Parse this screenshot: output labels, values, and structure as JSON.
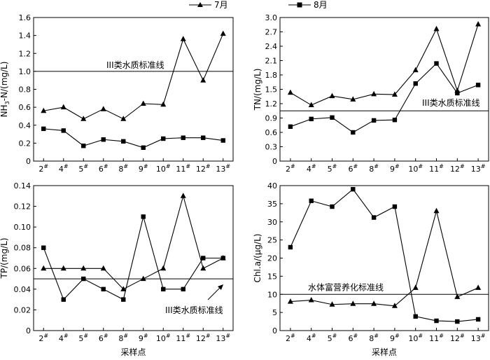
{
  "legend": {
    "jul_label": "7月",
    "aug_label": "8月"
  },
  "chart_data": [
    {
      "type": "line",
      "ylabel": "NH3-N/(mg/L)",
      "xlabel": "",
      "ylim": [
        0,
        1.6
      ],
      "yticks": [
        0,
        0.2,
        0.4,
        0.6,
        0.8,
        1.0,
        1.2,
        1.4,
        1.6
      ],
      "ytick_labels": [
        "0",
        "0.2",
        "0.4",
        "0.6",
        "0.8",
        "1.0",
        "1.2",
        "1.4",
        "1.6"
      ],
      "categories": [
        "2#",
        "4#",
        "5#",
        "6#",
        "8#",
        "9#",
        "10#",
        "11#",
        "12#",
        "13#"
      ],
      "series": [
        {
          "name": "7月",
          "marker": "triangle",
          "values": [
            0.56,
            0.6,
            0.47,
            0.58,
            0.47,
            0.64,
            0.63,
            1.36,
            0.9,
            1.42
          ]
        },
        {
          "name": "8月",
          "marker": "square",
          "values": [
            0.36,
            0.34,
            0.17,
            0.24,
            0.22,
            0.15,
            0.25,
            0.26,
            0.26,
            0.23
          ]
        }
      ],
      "reference_line": {
        "value": 1.0,
        "label": "III类水质标准线"
      }
    },
    {
      "type": "line",
      "ylabel": "TN/(mg/L)",
      "xlabel": "",
      "ylim": [
        0,
        3.0
      ],
      "yticks": [
        0,
        0.3,
        0.6,
        0.9,
        1.2,
        1.5,
        1.8,
        2.1,
        2.4,
        2.7,
        3.0
      ],
      "ytick_labels": [
        "0",
        "0.3",
        "0.6",
        "0.9",
        "1.2",
        "1.5",
        "1.8",
        "2.1",
        "2.4",
        "2.7",
        "3.0"
      ],
      "categories": [
        "2#",
        "4#",
        "5#",
        "6#",
        "8#",
        "9#",
        "10#",
        "11#",
        "12#",
        "13#"
      ],
      "series": [
        {
          "name": "7月",
          "marker": "triangle",
          "values": [
            1.43,
            1.17,
            1.36,
            1.29,
            1.4,
            1.39,
            1.9,
            2.76,
            1.47,
            2.86
          ]
        },
        {
          "name": "8月",
          "marker": "square",
          "values": [
            0.72,
            0.88,
            0.91,
            0.6,
            0.85,
            0.86,
            1.62,
            2.04,
            1.42,
            1.59
          ]
        }
      ],
      "reference_line": {
        "value": 1.05,
        "label": "III类水质标准线"
      }
    },
    {
      "type": "line",
      "ylabel": "TP/(mg/L)",
      "xlabel": "采样点",
      "ylim": [
        0,
        0.14
      ],
      "yticks": [
        0,
        0.02,
        0.04,
        0.06,
        0.08,
        0.1,
        0.12,
        0.14
      ],
      "ytick_labels": [
        "0",
        "0.02",
        "0.04",
        "0.06",
        "0.08",
        "0.10",
        "0.12",
        "0.14"
      ],
      "categories": [
        "2#",
        "4#",
        "5#",
        "6#",
        "8#",
        "9#",
        "10#",
        "11#",
        "12#",
        "13#"
      ],
      "series": [
        {
          "name": "7月",
          "marker": "triangle",
          "values": [
            0.06,
            0.06,
            0.06,
            0.06,
            0.04,
            0.05,
            0.06,
            0.13,
            0.06,
            0.07
          ]
        },
        {
          "name": "8月",
          "marker": "square",
          "values": [
            0.08,
            0.03,
            0.05,
            0.04,
            0.03,
            0.11,
            0.04,
            0.04,
            0.07,
            0.07
          ]
        }
      ],
      "reference_line": {
        "value": 0.05,
        "label": "III类水质标准线"
      }
    },
    {
      "type": "line",
      "ylabel": "Chl.a/(μg/L)",
      "xlabel": "采样点",
      "ylim": [
        0,
        40
      ],
      "yticks": [
        0,
        5,
        10,
        15,
        20,
        25,
        30,
        35,
        40
      ],
      "ytick_labels": [
        "0",
        "5",
        "10",
        "15",
        "20",
        "25",
        "30",
        "35",
        "40"
      ],
      "categories": [
        "2#",
        "4#",
        "5#",
        "6#",
        "8#",
        "9#",
        "10#",
        "11#",
        "12#",
        "13#"
      ],
      "series": [
        {
          "name": "7月",
          "marker": "triangle",
          "values": [
            8.0,
            8.4,
            7.2,
            7.4,
            7.4,
            6.8,
            11.8,
            33.0,
            9.3,
            11.8
          ]
        },
        {
          "name": "8月",
          "marker": "square",
          "values": [
            23.0,
            35.8,
            34.2,
            39.0,
            31.2,
            34.2,
            3.9,
            2.7,
            2.5,
            3.1
          ]
        }
      ],
      "reference_line": {
        "value": 10,
        "label": "水体富营养化标准线"
      }
    }
  ]
}
